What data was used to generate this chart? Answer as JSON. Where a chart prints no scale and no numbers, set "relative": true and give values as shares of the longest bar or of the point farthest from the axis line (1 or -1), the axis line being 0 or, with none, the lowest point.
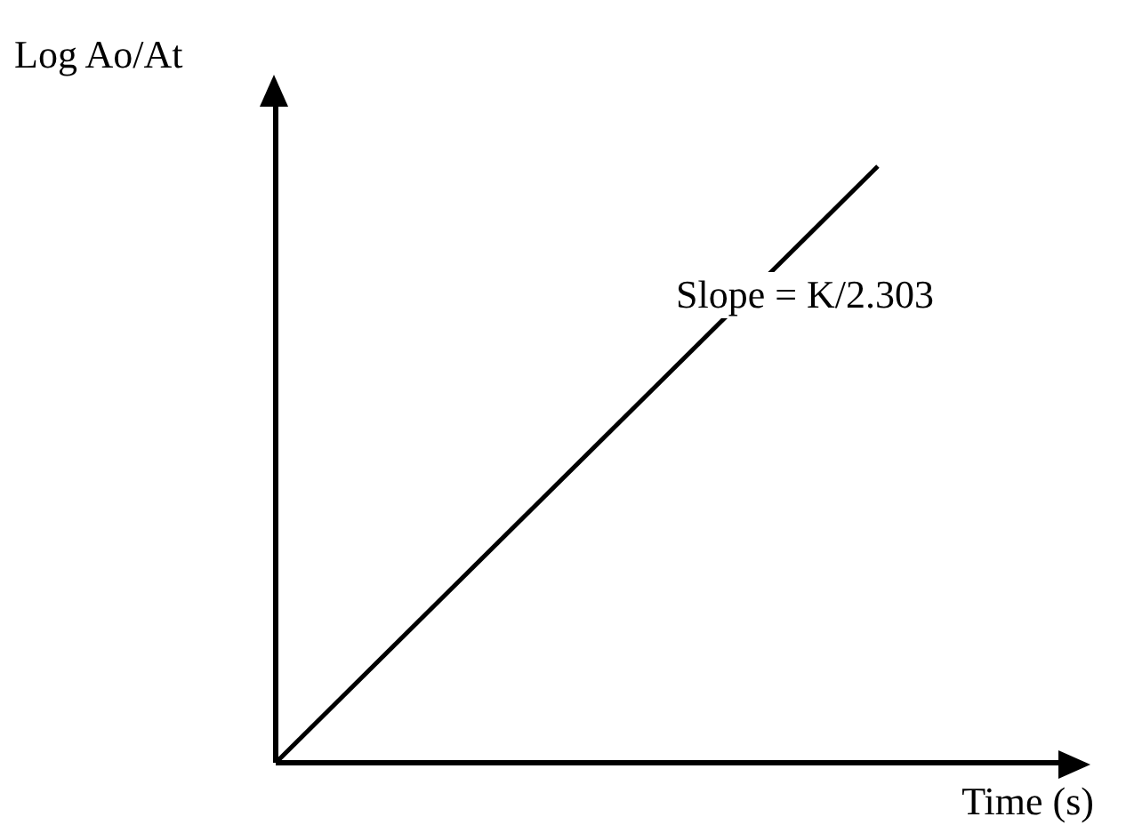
{
  "chart_data": {
    "type": "line",
    "relative": true,
    "ylabel": "Log Ao/At",
    "xlabel": "Time (s)",
    "categories": [
      null,
      null
    ],
    "series": [
      {
        "color": "#000000",
        "values": [
          0,
          1
        ]
      }
    ],
    "annotations": [
      "Slope = K/2.303"
    ],
    "grid": false,
    "legend": false,
    "marker": "none",
    "line_style": "solid"
  }
}
